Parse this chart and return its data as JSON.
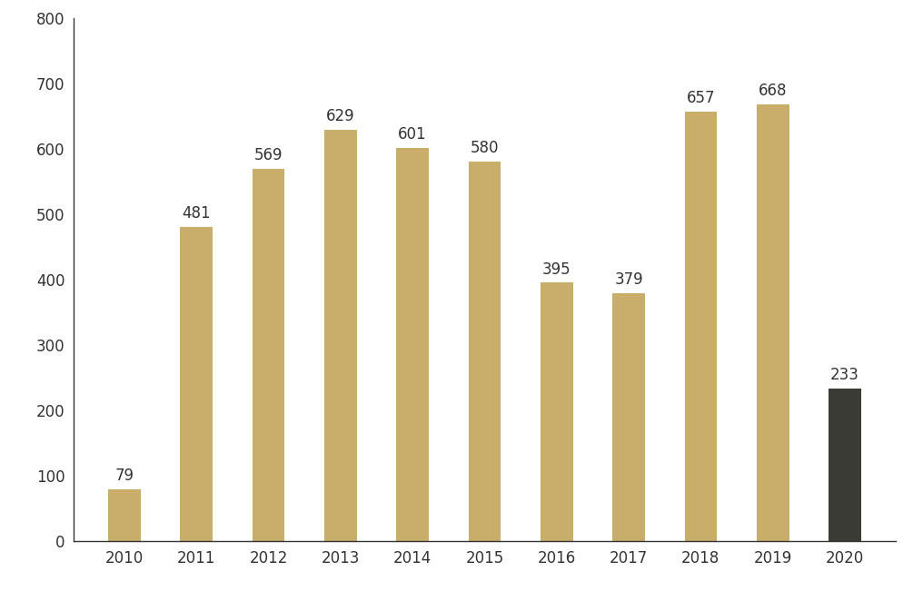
{
  "years": [
    "2010",
    "2011",
    "2012",
    "2013",
    "2014",
    "2015",
    "2016",
    "2017",
    "2018",
    "2019",
    "2020"
  ],
  "values": [
    79,
    481,
    569,
    629,
    601,
    580,
    395,
    379,
    657,
    668,
    233
  ],
  "bar_colors": [
    "#C9AD6A",
    "#C9AD6A",
    "#C9AD6A",
    "#C9AD6A",
    "#C9AD6A",
    "#C9AD6A",
    "#C9AD6A",
    "#C9AD6A",
    "#C9AD6A",
    "#C9AD6A",
    "#3B3B35"
  ],
  "ylim": [
    0,
    800
  ],
  "yticks": [
    0,
    100,
    200,
    300,
    400,
    500,
    600,
    700,
    800
  ],
  "background_color": "#ffffff",
  "label_fontsize": 12,
  "tick_fontsize": 12,
  "label_color": "#333333",
  "spine_color": "#333333",
  "bar_width": 0.45
}
